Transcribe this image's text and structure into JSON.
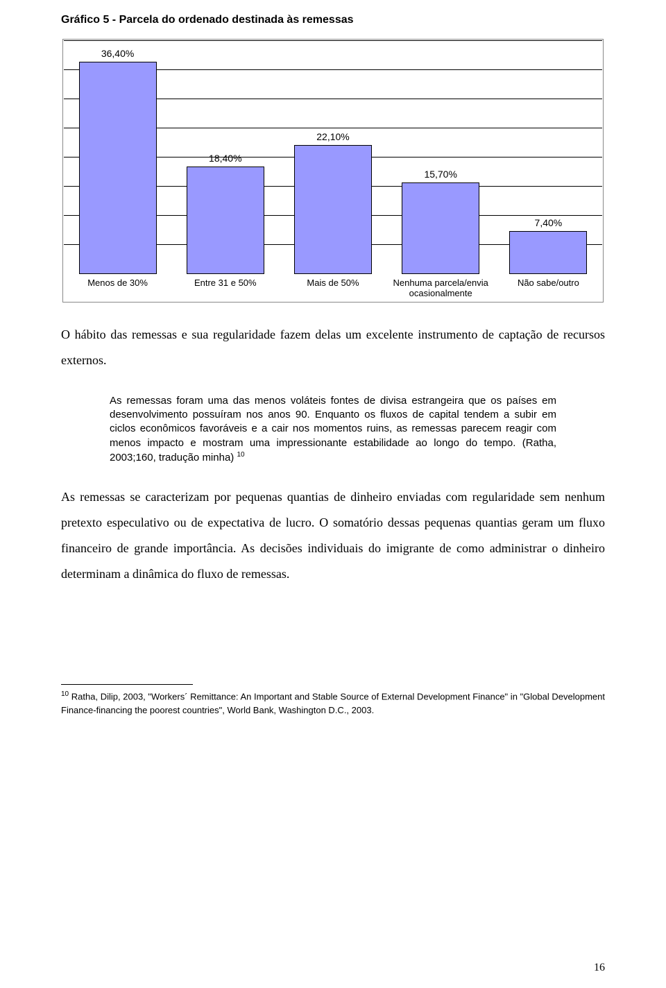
{
  "chart": {
    "title": "Gráfico 5 - Parcela do ordenado destinada às remessas",
    "type": "bar",
    "ylim": [
      0,
      40
    ],
    "gridlines": [
      5,
      10,
      15,
      20,
      25,
      30,
      35,
      40
    ],
    "bar_color": "#9999ff",
    "border_color": "#000000",
    "background_color": "#ffffff",
    "bars": [
      {
        "label": "36,40%",
        "value": 36.4,
        "xlabel": "Menos de 30%",
        "xlabel2": ""
      },
      {
        "label": "18,40%",
        "value": 18.4,
        "xlabel": "Entre 31 e 50%",
        "xlabel2": ""
      },
      {
        "label": "22,10%",
        "value": 22.1,
        "xlabel": "Mais de 50%",
        "xlabel2": ""
      },
      {
        "label": "15,70%",
        "value": 15.7,
        "xlabel": "Nenhuma parcela/envia",
        "xlabel2": "ocasionalmente"
      },
      {
        "label": "7,40%",
        "value": 7.4,
        "xlabel": "Não sabe/outro",
        "xlabel2": ""
      }
    ]
  },
  "para1": "O hábito das remessas e sua regularidade fazem delas um excelente instrumento de captação de recursos externos.",
  "quote": "As remessas foram uma das menos voláteis fontes de divisa estrangeira que os países em desenvolvimento possuíram nos anos 90. Enquanto os fluxos de capital tendem a subir em ciclos econômicos favoráveis e a cair nos momentos ruins, as remessas parecem reagir com menos impacto e mostram uma impressionante estabilidade ao longo do tempo. (Ratha, 2003;160, tradução minha)",
  "quote_sup": "10",
  "para2": "As remessas se caracterizam por pequenas quantias de dinheiro enviadas com regularidade sem nenhum pretexto especulativo ou de expectativa de lucro. O somatório dessas pequenas quantias geram um fluxo financeiro de grande importância. As decisões individuais do imigrante de como administrar o dinheiro determinam a dinâmica do fluxo de remessas.",
  "footnote_num": "10",
  "footnote_text": " Ratha, Dilip, 2003, \"Workers´ Remittance: An Important and Stable Source of External Development Finance\" in \"Global Development Finance-financing the poorest countries\", World Bank, Washington D.C., 2003.",
  "page_number": "16"
}
